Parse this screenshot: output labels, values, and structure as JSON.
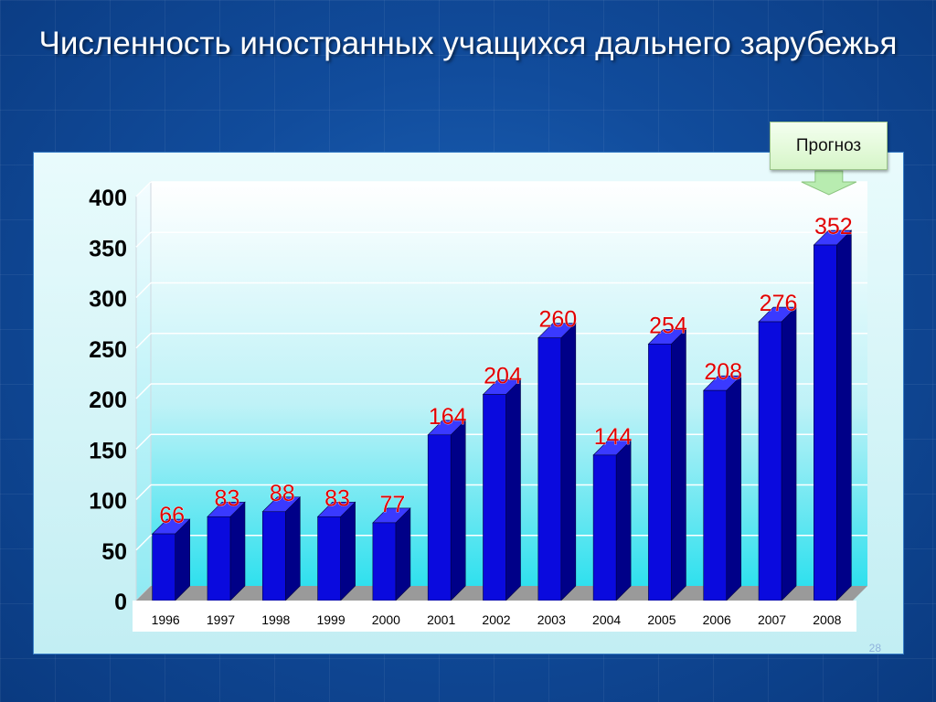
{
  "title": "Численность иностранных учащихся дальнего зарубежья",
  "slide_number": "28",
  "forecast_label": "Прогноз",
  "colors": {
    "background": "#114c9c",
    "bar_front": "#0a0ade",
    "bar_side": "#000088",
    "bar_top": "#3a3aff",
    "value_label": "#e00000",
    "forecast_box": "#d6f5c8"
  },
  "chart_data": {
    "type": "bar",
    "title": "",
    "xlabel": "",
    "ylabel": "",
    "categories": [
      "1996",
      "1997",
      "1998",
      "1999",
      "2000",
      "2001",
      "2002",
      "2003",
      "2004",
      "2005",
      "2006",
      "2007",
      "2008"
    ],
    "values": [
      66,
      83,
      88,
      83,
      77,
      164,
      204,
      260,
      144,
      254,
      208,
      276,
      352
    ],
    "value_labels": [
      "66",
      "83",
      "88",
      "83",
      "77",
      "164",
      "204",
      "260",
      "144",
      "254",
      "208",
      "276",
      "352"
    ],
    "ylim": [
      0,
      400
    ],
    "yticks": [
      "0",
      "50",
      "100",
      "150",
      "200",
      "250",
      "300",
      "350",
      "400"
    ],
    "grid": true,
    "style": "3d-column",
    "legend": "none"
  }
}
